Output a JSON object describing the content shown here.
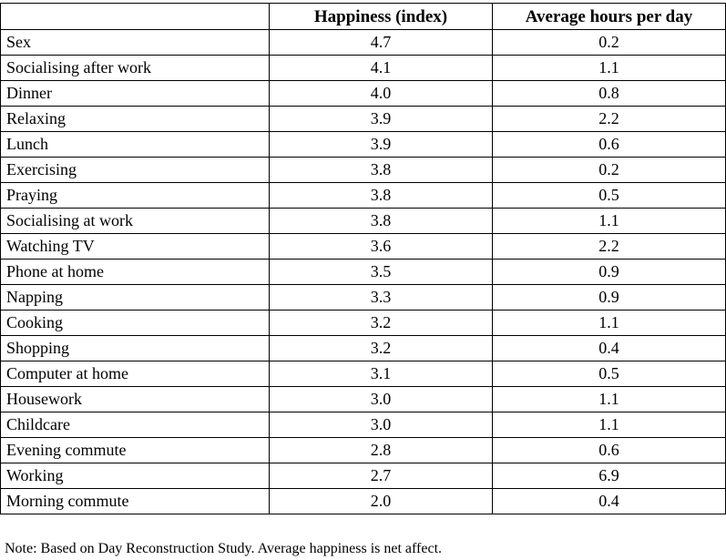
{
  "table": {
    "headers": [
      "",
      "Happiness (index)",
      "Average hours per day"
    ],
    "rows": [
      {
        "activity": "Sex",
        "happiness": "4.7",
        "hours": "0.2"
      },
      {
        "activity": "Socialising after work",
        "happiness": "4.1",
        "hours": "1.1"
      },
      {
        "activity": "Dinner",
        "happiness": "4.0",
        "hours": "0.8"
      },
      {
        "activity": "Relaxing",
        "happiness": "3.9",
        "hours": "2.2"
      },
      {
        "activity": "Lunch",
        "happiness": "3.9",
        "hours": "0.6"
      },
      {
        "activity": "Exercising",
        "happiness": "3.8",
        "hours": "0.2"
      },
      {
        "activity": "Praying",
        "happiness": "3.8",
        "hours": "0.5"
      },
      {
        "activity": "Socialising at work",
        "happiness": "3.8",
        "hours": "1.1"
      },
      {
        "activity": "Watching TV",
        "happiness": "3.6",
        "hours": "2.2"
      },
      {
        "activity": "Phone at home",
        "happiness": "3.5",
        "hours": "0.9"
      },
      {
        "activity": "Napping",
        "happiness": "3.3",
        "hours": "0.9"
      },
      {
        "activity": "Cooking",
        "happiness": "3.2",
        "hours": "1.1"
      },
      {
        "activity": "Shopping",
        "happiness": "3.2",
        "hours": "0.4"
      },
      {
        "activity": "Computer at home",
        "happiness": "3.1",
        "hours": "0.5"
      },
      {
        "activity": "Housework",
        "happiness": "3.0",
        "hours": "1.1"
      },
      {
        "activity": "Childcare",
        "happiness": "3.0",
        "hours": "1.1"
      },
      {
        "activity": "Evening commute",
        "happiness": "2.8",
        "hours": "0.6"
      },
      {
        "activity": "Working",
        "happiness": "2.7",
        "hours": "6.9"
      },
      {
        "activity": "Morning commute",
        "happiness": "2.0",
        "hours": "0.4"
      }
    ]
  },
  "note": "Note: Based on Day Reconstruction Study.  Average happiness is net affect."
}
